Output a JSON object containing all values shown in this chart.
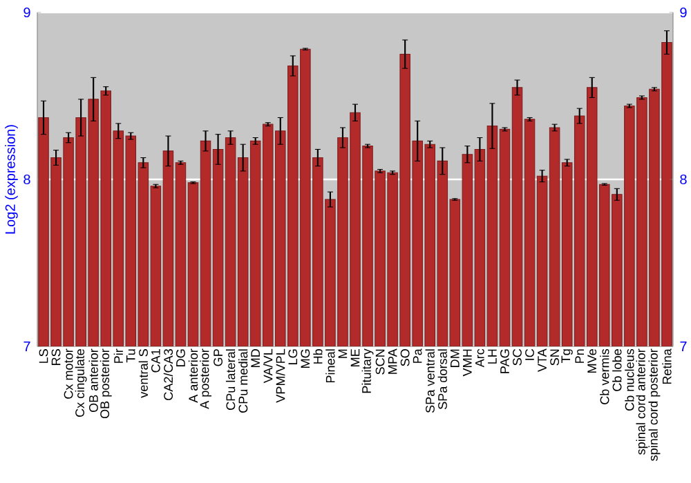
{
  "chart_data": {
    "type": "bar",
    "ylabel": "Log2 (expression)",
    "categories": [
      "LS",
      "RS",
      "Cx motor",
      "Cx cingulate",
      "OB anterior",
      "OB posterior",
      "Pir",
      "Tu",
      "ventral S",
      "CA1",
      "CA2/CA3",
      "DG",
      "A anterior",
      "A posterior",
      "GP",
      "CPu lateral",
      "CPu medial",
      "MD",
      "VA/VL",
      "VPM/VPL",
      "LG",
      "MG",
      "Hb",
      "Pineal",
      "M",
      "ME",
      "Pituitary",
      "SCN",
      "MPA",
      "SO",
      "Pa",
      "SPa ventral",
      "SPa dorsal",
      "DM",
      "VMH",
      "Arc",
      "LH",
      "PAG",
      "SC",
      "IC",
      "VTA",
      "SN",
      "Tg",
      "Pn",
      "MVe",
      "Cb vermis",
      "Cb lobe",
      "Cb nucleus",
      "spinal cord anterior",
      "spinal cord posterior",
      "Retina"
    ],
    "values": [
      8.37,
      8.13,
      8.25,
      8.37,
      8.48,
      8.53,
      8.29,
      8.26,
      8.1,
      7.96,
      8.17,
      8.1,
      7.98,
      8.23,
      8.18,
      8.25,
      8.13,
      8.23,
      8.33,
      8.29,
      8.68,
      8.78,
      8.13,
      7.88,
      8.25,
      8.4,
      8.2,
      8.05,
      8.04,
      8.75,
      8.23,
      8.21,
      8.11,
      7.88,
      8.15,
      8.18,
      8.32,
      8.3,
      8.55,
      8.36,
      8.02,
      8.31,
      8.1,
      8.38,
      8.55,
      7.97,
      7.91,
      8.44,
      8.49,
      8.54,
      8.82
    ],
    "errors": [
      0.1,
      0.045,
      0.03,
      0.11,
      0.13,
      0.025,
      0.045,
      0.02,
      0.03,
      0.01,
      0.09,
      0.01,
      0.005,
      0.06,
      0.09,
      0.04,
      0.08,
      0.02,
      0.01,
      0.08,
      0.06,
      0.005,
      0.05,
      0.045,
      0.06,
      0.05,
      0.01,
      0.01,
      0.01,
      0.085,
      0.12,
      0.02,
      0.08,
      0.005,
      0.05,
      0.07,
      0.135,
      0.01,
      0.045,
      0.01,
      0.035,
      0.02,
      0.02,
      0.045,
      0.06,
      0.005,
      0.035,
      0.01,
      0.01,
      0.01,
      0.07
    ],
    "color": "#b22a2a",
    "ylim": [
      7,
      9
    ],
    "yticks": [
      7,
      8,
      9
    ],
    "y2lim": [
      7,
      9
    ],
    "y2ticks": [
      7,
      8,
      9
    ],
    "grid": "y"
  }
}
